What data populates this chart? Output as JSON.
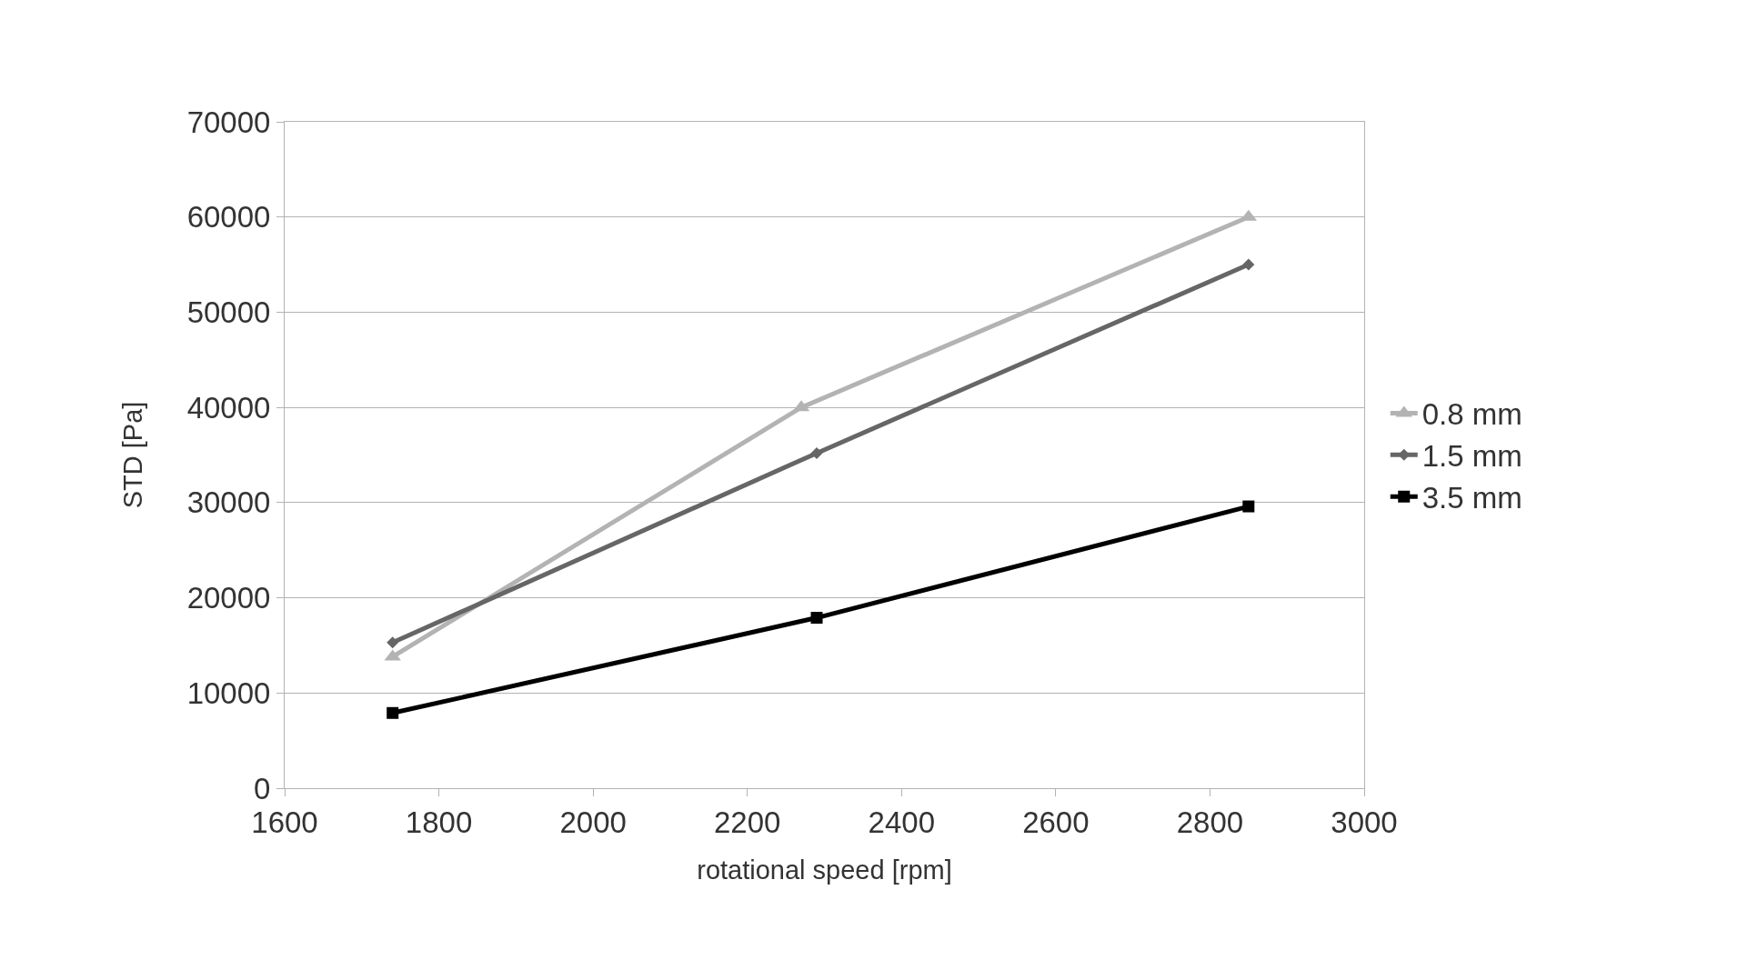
{
  "chart_data": {
    "type": "line",
    "xlabel": "rotational speed [rpm]",
    "ylabel": "STD [Pa]",
    "xlim": [
      1600,
      3000
    ],
    "xticks": [
      1600,
      1800,
      2000,
      2200,
      2400,
      2600,
      2800,
      3000
    ],
    "ylim": [
      0,
      70000
    ],
    "yticks": [
      0,
      10000,
      20000,
      30000,
      40000,
      50000,
      60000,
      70000
    ],
    "grid": "y",
    "legend": "right",
    "series": [
      {
        "name": "0.8 mm",
        "color": "#b3b3b3",
        "marker": "triangle",
        "x": [
          1740,
          2270,
          2850
        ],
        "values": [
          13800,
          40000,
          60000
        ]
      },
      {
        "name": "1.5 mm",
        "color": "#666666",
        "marker": "diamond",
        "x": [
          1740,
          2290,
          2850
        ],
        "values": [
          15300,
          35200,
          55000
        ]
      },
      {
        "name": "3.5 mm",
        "color": "#000000",
        "marker": "square",
        "x": [
          1740,
          2290,
          2850
        ],
        "values": [
          7900,
          17900,
          29600
        ]
      }
    ]
  }
}
